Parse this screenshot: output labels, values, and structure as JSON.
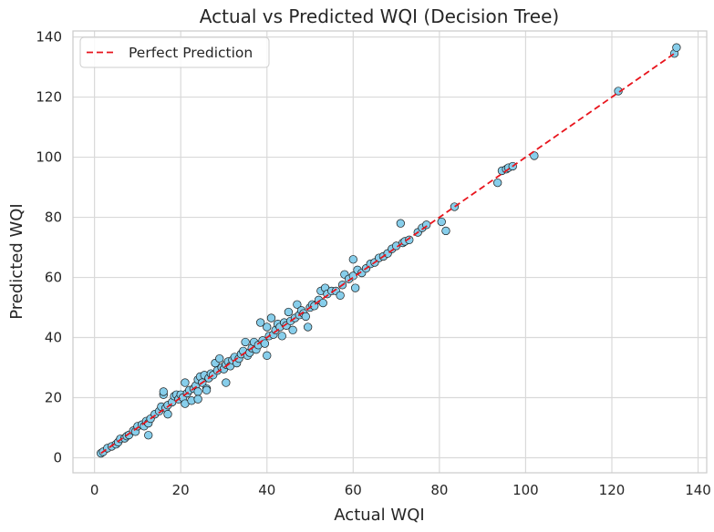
{
  "chart_data": {
    "type": "scatter",
    "title": "Actual vs Predicted WQI (Decision Tree)",
    "xlabel": "Actual WQI",
    "ylabel": "Predicted WQI",
    "xlim": [
      -5,
      142
    ],
    "ylim": [
      -5,
      142
    ],
    "xticks": [
      0,
      20,
      40,
      60,
      80,
      100,
      120,
      140
    ],
    "yticks": [
      0,
      20,
      40,
      60,
      80,
      100,
      120,
      140
    ],
    "grid": true,
    "legend": {
      "placement": "top-left",
      "entries": [
        "Perfect Prediction"
      ]
    },
    "perfect_line": {
      "name": "Perfect Prediction",
      "x": [
        1.5,
        135
      ],
      "y": [
        1.5,
        135
      ]
    },
    "colors": {
      "points": "#87ceeb",
      "point_edge": "#1a1a1a",
      "line": "#e8141c",
      "grid": "#d9d9d9",
      "spine": "#cccccc"
    },
    "points": [
      [
        1.5,
        1.5
      ],
      [
        2,
        2
      ],
      [
        3,
        3.2
      ],
      [
        4,
        3.8
      ],
      [
        5,
        4.5
      ],
      [
        5.5,
        5.2
      ],
      [
        6,
        6.3
      ],
      [
        7,
        6.5
      ],
      [
        7.5,
        7.2
      ],
      [
        8,
        7.6
      ],
      [
        9,
        9
      ],
      [
        9.5,
        8.7
      ],
      [
        10,
        10.5
      ],
      [
        11,
        11
      ],
      [
        11.5,
        10.5
      ],
      [
        12,
        12.2
      ],
      [
        12.5,
        11.5
      ],
      [
        12.5,
        7.5
      ],
      [
        13,
        13
      ],
      [
        14,
        14.5
      ],
      [
        15,
        15.5
      ],
      [
        15.5,
        17
      ],
      [
        16,
        21
      ],
      [
        16,
        22
      ],
      [
        16.5,
        16.5
      ],
      [
        17,
        17.5
      ],
      [
        17,
        14.5
      ],
      [
        18,
        18.5
      ],
      [
        18.5,
        20.5
      ],
      [
        19,
        21
      ],
      [
        19.5,
        19.5
      ],
      [
        20,
        21
      ],
      [
        20.5,
        20
      ],
      [
        21,
        18
      ],
      [
        21,
        25
      ],
      [
        21.5,
        21.5
      ],
      [
        22,
        22.5
      ],
      [
        22.5,
        19
      ],
      [
        23,
        23
      ],
      [
        23.5,
        24
      ],
      [
        24,
        22
      ],
      [
        24,
        26
      ],
      [
        24,
        19.5
      ],
      [
        24.5,
        27
      ],
      [
        25,
        25
      ],
      [
        25.5,
        27.5
      ],
      [
        26,
        23
      ],
      [
        26,
        22.5
      ],
      [
        26.5,
        26.5
      ],
      [
        27,
        28
      ],
      [
        27.5,
        27.5
      ],
      [
        28,
        31.5
      ],
      [
        28.5,
        29
      ],
      [
        29,
        33
      ],
      [
        29.5,
        30
      ],
      [
        30,
        29.5
      ],
      [
        30.5,
        31
      ],
      [
        30.5,
        25
      ],
      [
        31,
        32
      ],
      [
        31.5,
        30.5
      ],
      [
        32,
        32.5
      ],
      [
        32.5,
        33.5
      ],
      [
        33,
        31.5
      ],
      [
        33.5,
        33
      ],
      [
        34,
        34.5
      ],
      [
        34.5,
        35.5
      ],
      [
        35,
        38.5
      ],
      [
        35.5,
        34
      ],
      [
        36,
        35
      ],
      [
        36.5,
        36.5
      ],
      [
        37,
        38.5
      ],
      [
        37.5,
        36
      ],
      [
        38,
        37.5
      ],
      [
        38.5,
        45
      ],
      [
        39,
        39
      ],
      [
        39.5,
        38
      ],
      [
        40,
        34
      ],
      [
        40,
        43.5
      ],
      [
        40.5,
        40.5
      ],
      [
        41,
        46.5
      ],
      [
        41.5,
        41
      ],
      [
        42,
        42.5
      ],
      [
        42.5,
        44.5
      ],
      [
        43,
        43.5
      ],
      [
        43.5,
        40.5
      ],
      [
        44,
        45
      ],
      [
        44.5,
        44
      ],
      [
        45,
        48.5
      ],
      [
        45.5,
        45.5
      ],
      [
        46,
        42.5
      ],
      [
        46.5,
        46.5
      ],
      [
        47,
        51
      ],
      [
        47.5,
        47.5
      ],
      [
        48,
        49
      ],
      [
        48.5,
        48
      ],
      [
        49,
        47
      ],
      [
        49.5,
        43.5
      ],
      [
        50,
        50
      ],
      [
        50.5,
        51
      ],
      [
        51,
        50.5
      ],
      [
        52,
        52.5
      ],
      [
        52.5,
        55.5
      ],
      [
        53,
        51.5
      ],
      [
        53.5,
        56.5
      ],
      [
        54,
        54.5
      ],
      [
        55,
        55.5
      ],
      [
        56,
        55.5
      ],
      [
        57,
        54
      ],
      [
        57.5,
        57.5
      ],
      [
        58,
        61
      ],
      [
        59,
        59.5
      ],
      [
        60,
        60.5
      ],
      [
        60,
        66
      ],
      [
        60.5,
        56.5
      ],
      [
        61,
        62.5
      ],
      [
        62,
        61.5
      ],
      [
        63,
        63
      ],
      [
        64,
        64.5
      ],
      [
        65,
        65
      ],
      [
        66,
        66.5
      ],
      [
        67,
        67
      ],
      [
        68,
        68
      ],
      [
        69,
        69.5
      ],
      [
        70,
        70.5
      ],
      [
        71,
        78
      ],
      [
        71.5,
        71.5
      ],
      [
        72,
        72
      ],
      [
        73,
        72.5
      ],
      [
        75,
        75
      ],
      [
        76,
        76.5
      ],
      [
        77,
        77.5
      ],
      [
        80.5,
        78.5
      ],
      [
        81.5,
        75.5
      ],
      [
        83.5,
        83.5
      ],
      [
        93.5,
        91.5
      ],
      [
        94.5,
        95.5
      ],
      [
        95.5,
        96
      ],
      [
        96,
        96.5
      ],
      [
        97,
        97
      ],
      [
        102,
        100.5
      ],
      [
        121.5,
        122
      ],
      [
        134.5,
        134.5
      ],
      [
        135,
        136.5
      ]
    ]
  }
}
